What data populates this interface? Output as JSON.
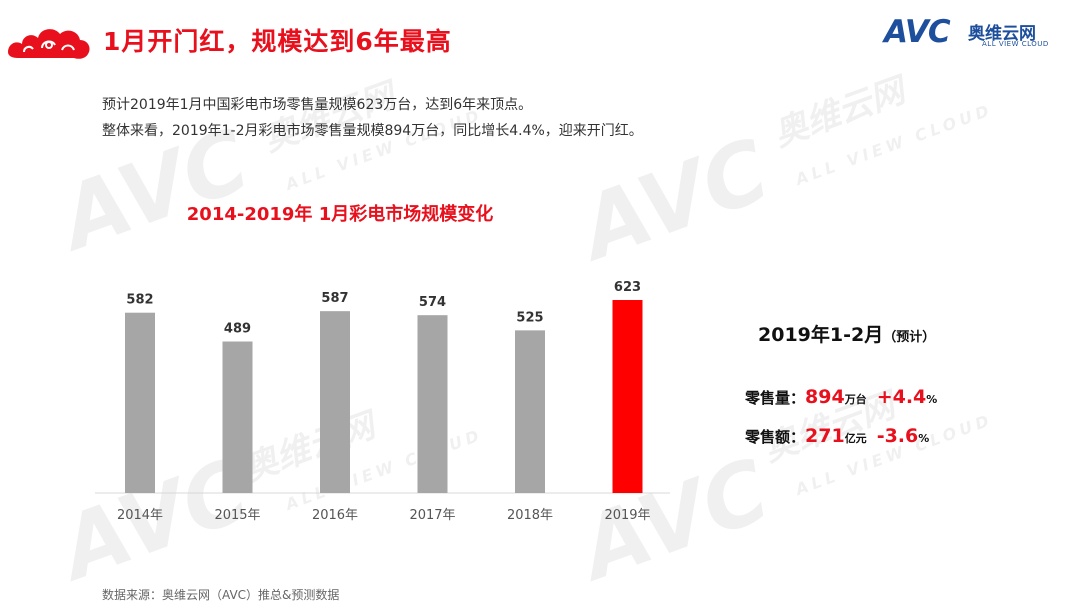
{
  "header": {
    "title": "1月开门红，规模达到6年最高"
  },
  "brand": {
    "logo_text": "AVC",
    "name_cn": "奥维云网",
    "name_en": "ALL VIEW CLOUD"
  },
  "intro": {
    "line1": "预计2019年1月中国彩电市场零售量规模623万台，达到6年来顶点。",
    "line2": "整体来看，2019年1-2月彩电市场零售量规模894万台，同比增长4.4%，迎来开门红。"
  },
  "watermark": {
    "logo": "AVC",
    "cn": "奥维云网",
    "en": "ALL VIEW CLOUD"
  },
  "chart_data": {
    "type": "bar",
    "title": "2014-2019年   1月彩电市场规模变化",
    "categories": [
      "2014年",
      "2015年",
      "2016年",
      "2017年",
      "2018年",
      "2019年"
    ],
    "values": [
      582,
      489,
      587,
      574,
      525,
      623
    ],
    "data_labels": [
      "582",
      "489",
      "587",
      "574",
      "525",
      "623"
    ],
    "highlight_index": 5,
    "colors": {
      "normal": "#a6a6a6",
      "highlight": "#ff0000"
    },
    "ylim": [
      0,
      623
    ]
  },
  "side": {
    "title": "2019年1-2月",
    "title_sub": "（预计）",
    "volume": {
      "label": "零售量：",
      "value": "894",
      "unit": "万台",
      "change": "+4.4",
      "change_unit": "%"
    },
    "amount": {
      "label": "零售额：",
      "value": "271",
      "unit": "亿元",
      "change": "-3.6",
      "change_unit": "%"
    }
  },
  "source": "数据来源：奥维云网（AVC）推总&预测数据"
}
